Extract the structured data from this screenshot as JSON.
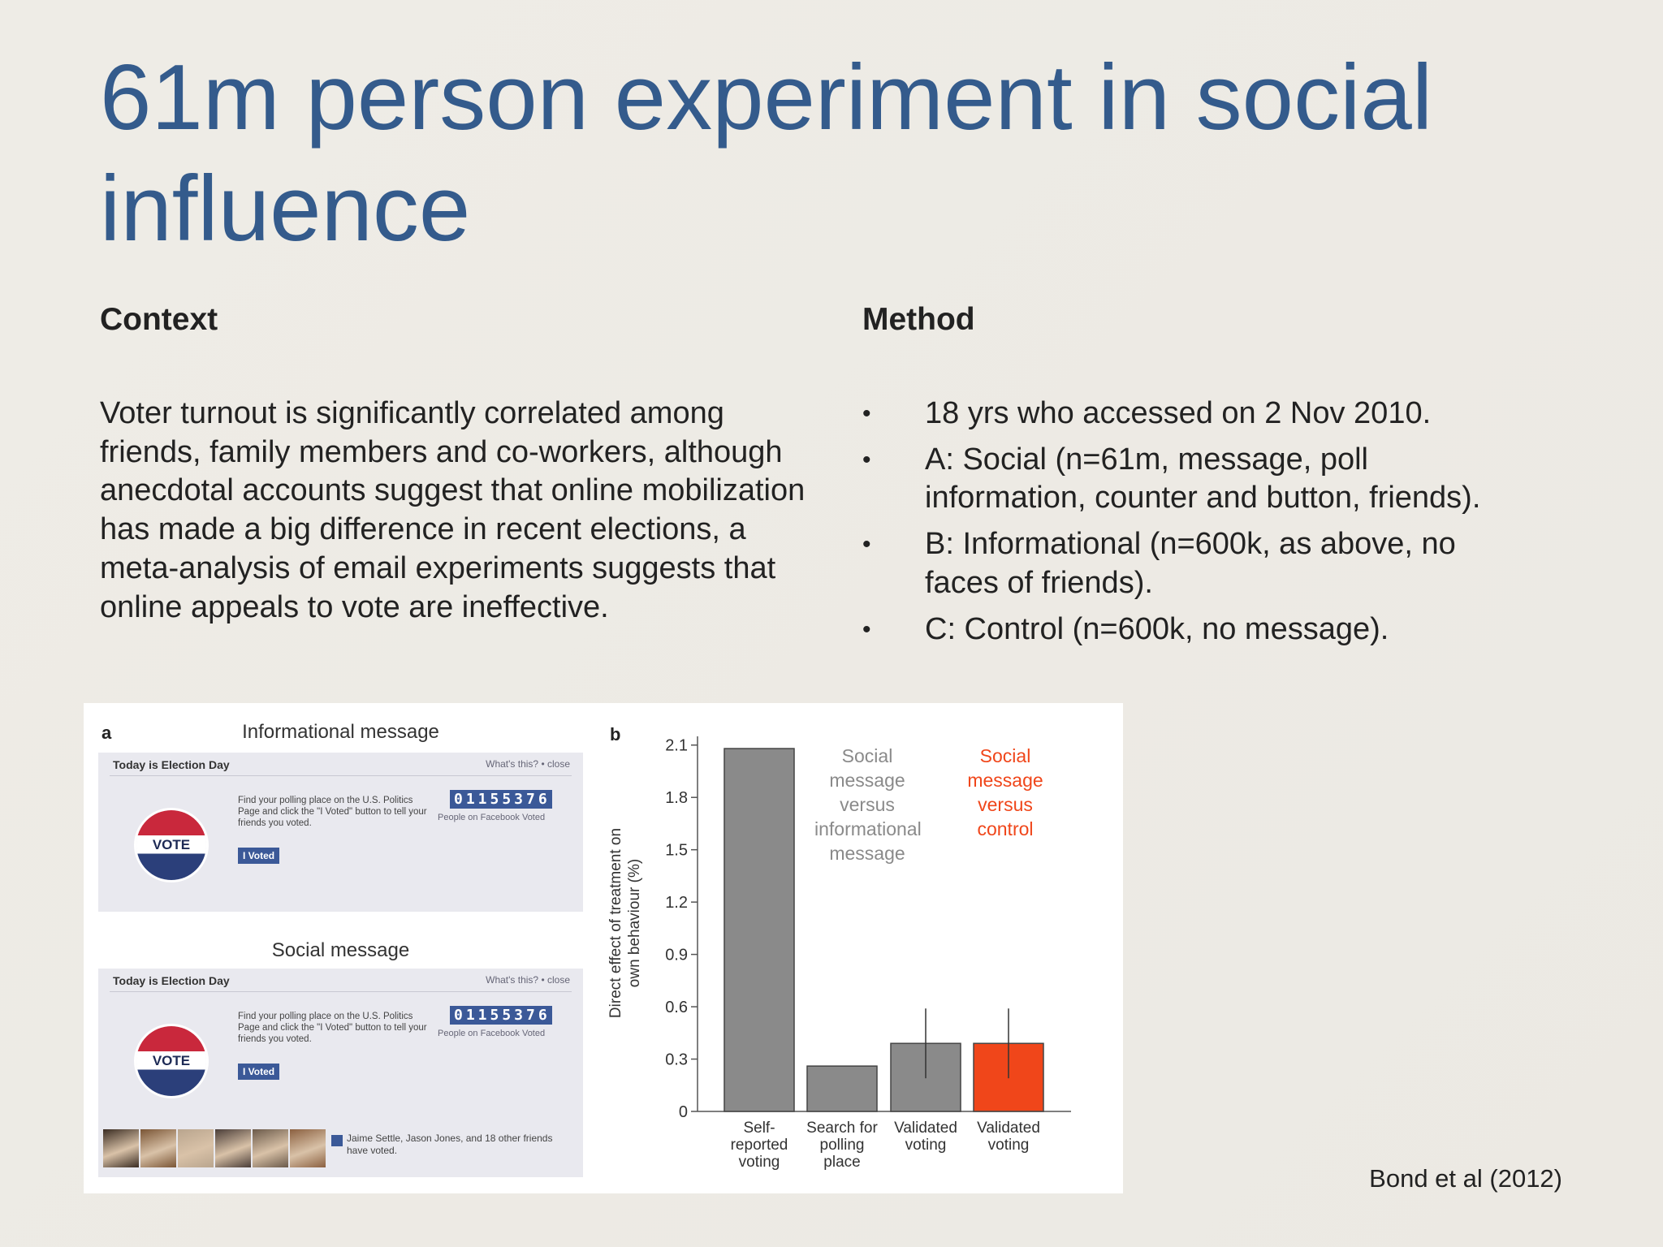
{
  "title": "61m person experiment in social influence",
  "context": {
    "heading": "Context",
    "body": "Voter turnout is significantly correlated among friends, family members and co-workers, although anecdotal accounts suggest that online mobilization has made a big difference in recent elections, a meta-analysis of email experiments suggests that online appeals to vote are ineffective."
  },
  "method": {
    "heading": "Method",
    "bullets": [
      "18 yrs who accessed on 2 Nov 2010.",
      "A: Social (n=61m, message, poll information, counter and button, friends).",
      "B: Informational (n=600k, as above, no faces of friends).",
      "C: Control (n=600k, no message)."
    ]
  },
  "figure": {
    "panel_label": "a",
    "cards": [
      {
        "title": "Informational message",
        "header": "Today is Election Day",
        "links": "What's this? • close",
        "instructions": "Find your polling place on the U.S. Politics Page and click the \"I Voted\" button to tell your friends you voted.",
        "counter": "01155376",
        "counter_caption": "People on Facebook Voted",
        "badge": "VOTE",
        "button": "I Voted"
      },
      {
        "title": "Social message",
        "header": "Today is Election Day",
        "links": "What's this? • close",
        "instructions": "Find your polling place on the U.S. Politics Page and click the \"I Voted\" button to tell your friends you voted.",
        "counter": "01155376",
        "counter_caption": "People on Facebook Voted",
        "badge": "VOTE",
        "button": "I Voted",
        "friends": "Jaime Settle, Jason Jones, and 18 other friends have voted."
      }
    ]
  },
  "chart_data": {
    "type": "bar",
    "panel_label": "b",
    "y_label": "Direct effect of treatment on own behaviour (%)",
    "categories": [
      "Self-reported voting",
      "Search for polling place",
      "Validated voting",
      "Validated voting"
    ],
    "values": [
      2.08,
      0.26,
      0.39,
      0.39
    ],
    "errors": [
      null,
      null,
      0.2,
      0.2
    ],
    "colors": [
      "#8a8a8a",
      "#8a8a8a",
      "#8a8a8a",
      "#f0461a"
    ],
    "ylim": [
      0,
      2.15
    ],
    "yticks": [
      0,
      0.3,
      0.6,
      0.9,
      1.2,
      1.5,
      1.8,
      2.1
    ],
    "annotations": [
      {
        "text": "Social message versus informational message",
        "color": "#8a8a8a"
      },
      {
        "text": "Social message versus control",
        "color": "#f0461a"
      }
    ]
  },
  "citation": "Bond et al (2012)"
}
